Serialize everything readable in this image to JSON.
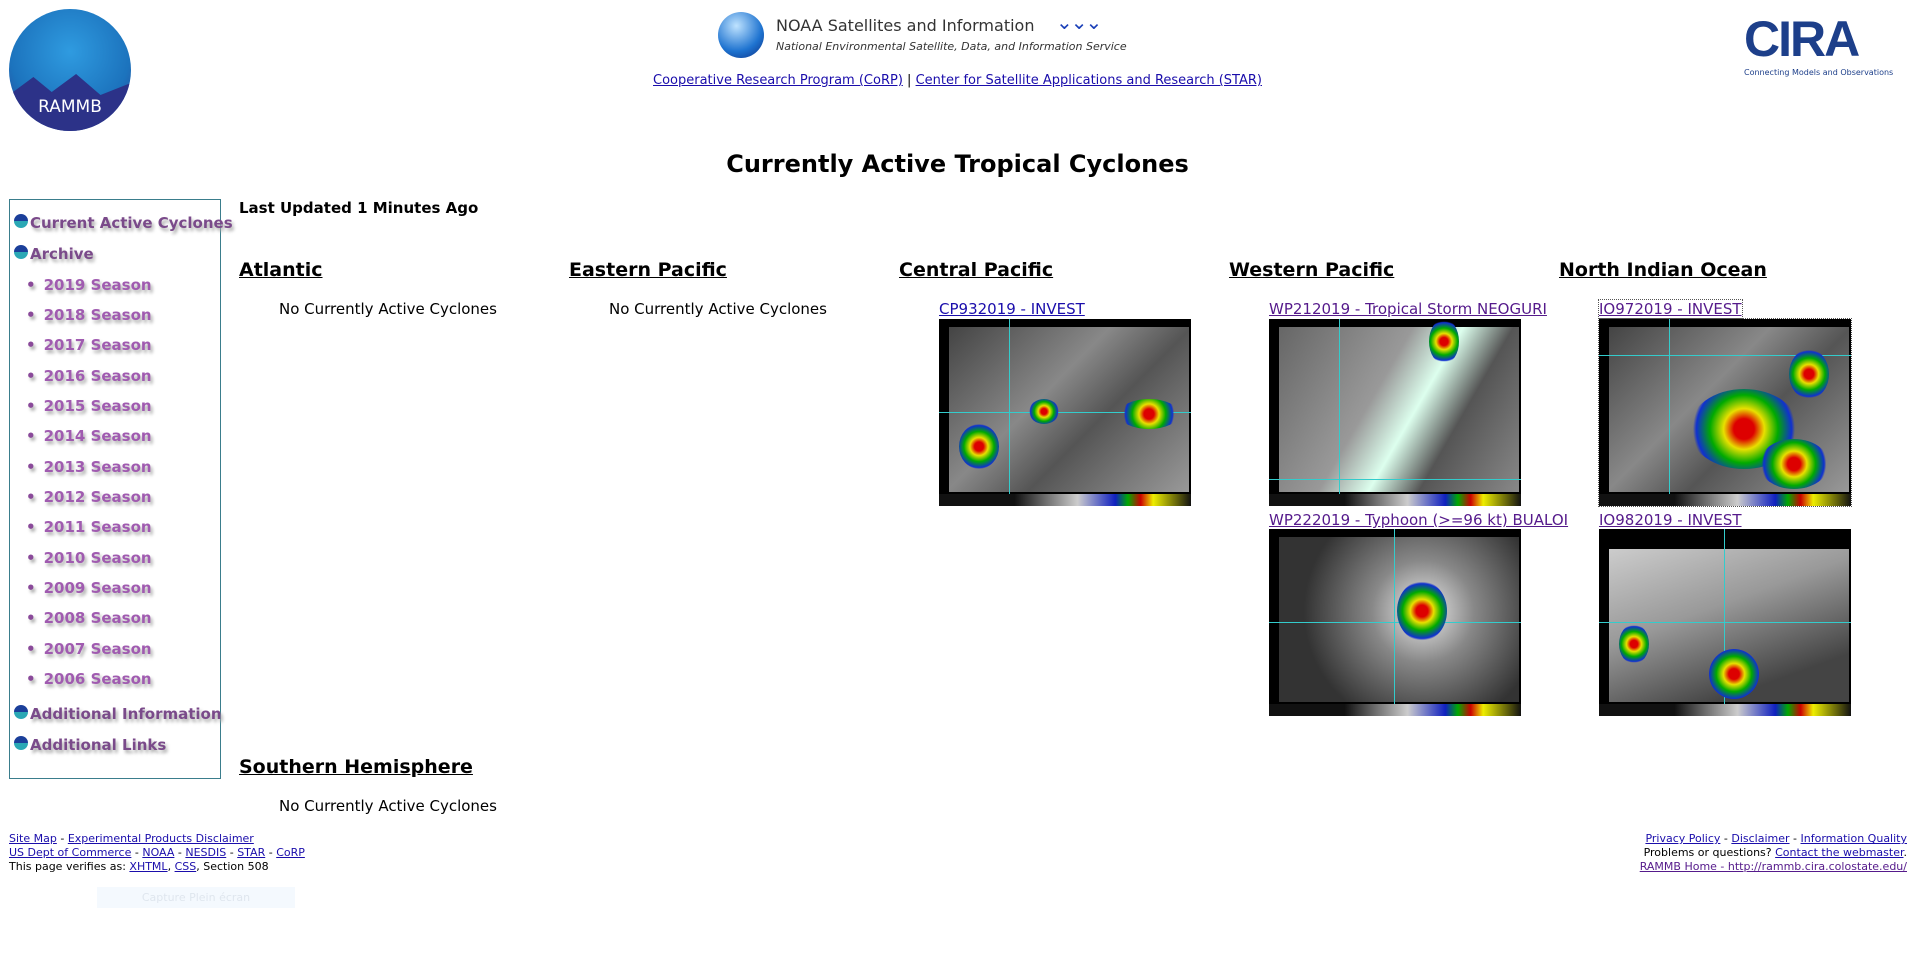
{
  "header": {
    "rammb_logo": "RAMMB",
    "noaa_title": "NOAA Satellites and Information",
    "noaa_subtitle": "National Environmental Satellite, Data, and Information Service",
    "links": [
      "Cooperative Research Program (CoRP)",
      "Center for Satellite Applications and Research (STAR)"
    ],
    "separator": "|",
    "cira_logo": "CIRA",
    "cira_tagline": "Connecting Models and Observations"
  },
  "page_title": "Currently Active Tropical Cyclones",
  "sidebar": {
    "current": "Current Active Cyclones",
    "archive": "Archive",
    "seasons": [
      "2019 Season",
      "2018 Season",
      "2017 Season",
      "2016 Season",
      "2015 Season",
      "2014 Season",
      "2013 Season",
      "2012 Season",
      "2011 Season",
      "2010 Season",
      "2009 Season",
      "2008 Season",
      "2007 Season",
      "2006 Season"
    ],
    "additional_info": "Additional Information",
    "additional_links": "Additional Links"
  },
  "last_updated": "Last Updated 1 Minutes Ago",
  "basins": {
    "atlantic": {
      "name": "Atlantic",
      "none": "No Currently Active Cyclones"
    },
    "eastern_pacific": {
      "name": "Eastern Pacific",
      "none": "No Currently Active Cyclones"
    },
    "central_pacific": {
      "name": "Central Pacific",
      "storms": [
        "CP932019 - INVEST"
      ]
    },
    "western_pacific": {
      "name": "Western Pacific",
      "storms": [
        "WP212019 - Tropical Storm NEOGURI",
        "WP222019 - Typhoon (>=96 kt) BUALOI"
      ]
    },
    "north_indian": {
      "name": "North Indian Ocean",
      "storms": [
        "IO972019 - INVEST",
        "IO982019 - INVEST"
      ]
    },
    "southern": {
      "name": "Southern Hemisphere",
      "none": "No Currently Active Cyclones"
    }
  },
  "footer": {
    "left": {
      "row1": [
        "Site Map",
        "Experimental Products Disclaimer"
      ],
      "row2": [
        "US Dept of Commerce",
        "NOAA",
        "NESDIS",
        "STAR",
        "CoRP"
      ],
      "verifies": "This page verifies as:",
      "xhtml": "XHTML",
      "css": "CSS",
      "section": "Section 508"
    },
    "right": {
      "row1": [
        "Privacy Policy",
        "Disclaimer",
        "Information Quality"
      ],
      "problems": "Problems or questions?",
      "contact": "Contact the webmaster",
      "home": "RAMMB Home - http://rammb.cira.colostate.edu/"
    }
  },
  "capture_button": "Capture Plein écran"
}
